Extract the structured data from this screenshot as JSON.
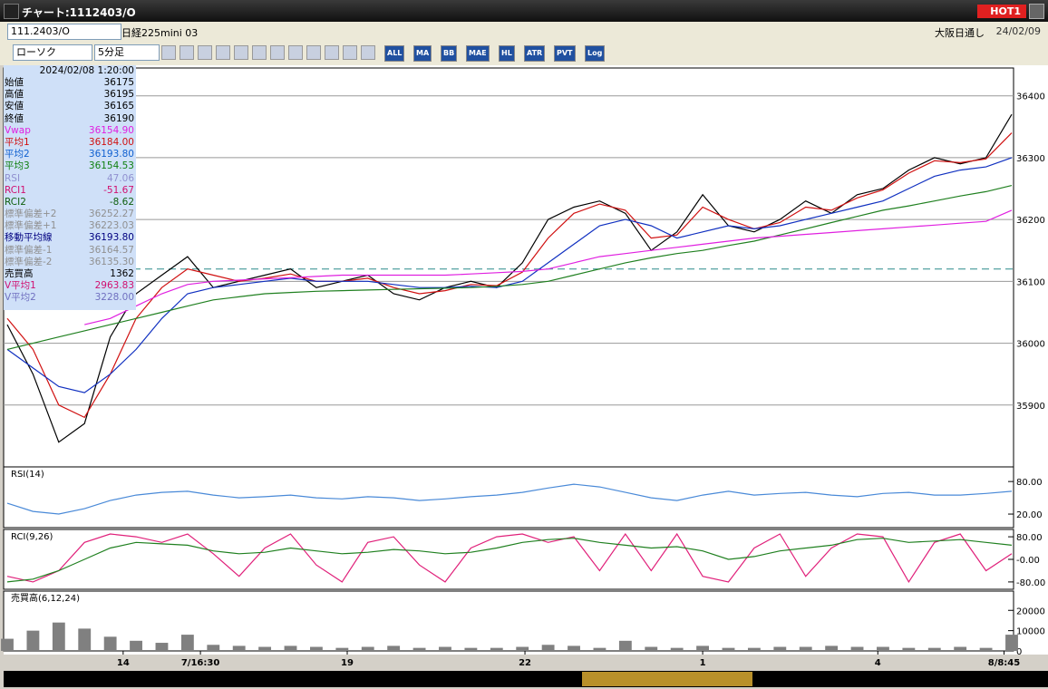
{
  "window": {
    "title": "チャート:1112403/O",
    "badge": "HOT1"
  },
  "toolbar": {
    "symbol": "111.2403/O",
    "name": "日経225mini 03",
    "market": "大阪日通し",
    "date": "24/02/09",
    "chart_type": "ローソク",
    "interval": "5分足",
    "buttons": [
      "ALL",
      "MA",
      "BB",
      "MAE",
      "HL",
      "ATR",
      "PVT",
      "Log"
    ]
  },
  "info_panel": {
    "datetime": "2024/02/08 1:20:00",
    "rows": [
      {
        "label": "始値",
        "value": "36175",
        "color": "#000000"
      },
      {
        "label": "高値",
        "value": "36195",
        "color": "#000000"
      },
      {
        "label": "安値",
        "value": "36165",
        "color": "#000000"
      },
      {
        "label": "終値",
        "value": "36190",
        "color": "#000000"
      },
      {
        "label": "Vwap",
        "value": "36154.90",
        "color": "#e020e0"
      },
      {
        "label": "平均1",
        "value": "36184.00",
        "color": "#d01010"
      },
      {
        "label": "平均2",
        "value": "36193.80",
        "color": "#1060d0"
      },
      {
        "label": "平均3",
        "value": "36154.53",
        "color": "#108010"
      },
      {
        "label": "RSI",
        "value": "47.06",
        "color": "#9090d0"
      },
      {
        "label": "RCI1",
        "value": "-51.67",
        "color": "#d01070"
      },
      {
        "label": "RCI2",
        "value": "-8.62",
        "color": "#106010"
      },
      {
        "label": "標準偏差+2",
        "value": "36252.27",
        "color": "#909090"
      },
      {
        "label": "標準偏差+1",
        "value": "36223.03",
        "color": "#909090"
      },
      {
        "label": "移動平均線",
        "value": "36193.80",
        "color": "#000080"
      },
      {
        "label": "標準偏差-1",
        "value": "36164.57",
        "color": "#909090"
      },
      {
        "label": "標準偏差-2",
        "value": "36135.30",
        "color": "#909090"
      },
      {
        "label": "売買高",
        "value": "1362",
        "color": "#000000"
      },
      {
        "label": "V平均1",
        "value": "2963.83",
        "color": "#d01070"
      },
      {
        "label": "V平均2",
        "value": "3228.00",
        "color": "#7070c0"
      }
    ]
  },
  "chart_data": [
    {
      "type": "line",
      "xlim": [
        0,
        39
      ],
      "ylim": [
        35800,
        36445
      ],
      "yticks": [
        35900,
        36000,
        36100,
        36200,
        36300,
        36400
      ],
      "xticks": [
        {
          "value": 4.5,
          "label": "14"
        },
        {
          "value": 7.5,
          "label": "7/16:30"
        },
        {
          "value": 13.2,
          "label": "19"
        },
        {
          "value": 20.1,
          "label": "22"
        },
        {
          "value": 27,
          "label": "1"
        },
        {
          "value": 33.8,
          "label": "4"
        },
        {
          "value": 38.7,
          "label": "8/8:45"
        }
      ],
      "hline": 36120,
      "hline_color": "#2a8a8a",
      "grid": true,
      "series": [
        {
          "color": "#000000",
          "values": [
            36030,
            35950,
            35840,
            35870,
            36010,
            36080,
            36110,
            36140,
            36090,
            36100,
            36110,
            36120,
            36090,
            36100,
            36110,
            36080,
            36070,
            36090,
            36100,
            36090,
            36130,
            36200,
            36220,
            36230,
            36210,
            36150,
            36180,
            36240,
            36190,
            36180,
            36200,
            36230,
            36210,
            36240,
            36250,
            36280,
            36300,
            36290,
            36300,
            36370
          ]
        },
        {
          "color": "#d01010",
          "values": [
            36040,
            35990,
            35900,
            35880,
            35950,
            36040,
            36090,
            36120,
            36110,
            36100,
            36105,
            36112,
            36100,
            36100,
            36105,
            36090,
            36080,
            36085,
            36095,
            36093,
            36115,
            36170,
            36210,
            36225,
            36215,
            36170,
            36175,
            36220,
            36200,
            36185,
            36195,
            36220,
            36215,
            36235,
            36248,
            36275,
            36295,
            36292,
            36298,
            36340
          ]
        },
        {
          "color": "#1030c0",
          "values": [
            35990,
            35960,
            35930,
            35920,
            35950,
            35990,
            36040,
            36080,
            36090,
            36095,
            36100,
            36105,
            36100,
            36100,
            36100,
            36095,
            36090,
            36090,
            36092,
            36090,
            36100,
            36130,
            36160,
            36190,
            36200,
            36190,
            36170,
            36180,
            36190,
            36185,
            36190,
            36200,
            36210,
            36220,
            36230,
            36250,
            36270,
            36280,
            36285,
            36300
          ]
        },
        {
          "color": "#208020",
          "values": [
            35990,
            36000,
            36010,
            36020,
            36030,
            36040,
            36050,
            36060,
            36070,
            36075,
            36080,
            36082,
            36084,
            36085,
            36086,
            36087,
            36088,
            36089,
            36090,
            36092,
            36095,
            36100,
            36110,
            36120,
            36130,
            36138,
            36145,
            36150,
            36158,
            36165,
            36175,
            36185,
            36195,
            36205,
            36215,
            36222,
            36230,
            36238,
            36245,
            36255
          ]
        },
        {
          "color": "#e020e0",
          "values": [
            null,
            null,
            null,
            36030,
            36040,
            36060,
            36080,
            36095,
            36100,
            36102,
            36104,
            36106,
            36108,
            36110,
            36110,
            36110,
            36110,
            36110,
            36112,
            36114,
            36116,
            36120,
            36130,
            36140,
            36145,
            36150,
            36155,
            36160,
            36165,
            36170,
            36173,
            36176,
            36179,
            36182,
            36185,
            36188,
            36191,
            36194,
            36197,
            36215
          ]
        }
      ]
    },
    {
      "type": "line",
      "title": "RSI(14)",
      "ylim": [
        -5,
        107
      ],
      "yticks": [
        {
          "value": 80,
          "label": "80.00"
        },
        {
          "value": 20,
          "label": "20.00"
        }
      ],
      "grid": false,
      "series": [
        {
          "color": "#4a8ad8",
          "values": [
            40,
            25,
            20,
            30,
            45,
            55,
            60,
            62,
            55,
            50,
            52,
            55,
            50,
            48,
            52,
            50,
            45,
            48,
            52,
            55,
            60,
            68,
            75,
            70,
            60,
            50,
            45,
            55,
            62,
            55,
            58,
            60,
            55,
            52,
            58,
            60,
            55,
            55,
            58,
            62
          ]
        }
      ]
    },
    {
      "type": "line",
      "title": "RCI(9,26)",
      "ylim": [
        -106,
        106
      ],
      "yticks": [
        {
          "value": 80,
          "label": "80.00"
        },
        {
          "value": 0,
          "label": "-0.00"
        },
        {
          "value": -80,
          "label": "-80.00"
        }
      ],
      "grid": false,
      "series": [
        {
          "color": "#e0207a",
          "values": [
            -60,
            -80,
            -40,
            60,
            90,
            80,
            60,
            90,
            20,
            -60,
            40,
            90,
            -20,
            -80,
            60,
            80,
            -20,
            -80,
            40,
            80,
            90,
            60,
            80,
            -40,
            90,
            -40,
            90,
            -60,
            -80,
            40,
            90,
            -60,
            40,
            90,
            80,
            -80,
            60,
            90,
            -40,
            20
          ]
        },
        {
          "color": "#208020",
          "values": [
            -80,
            -70,
            -40,
            0,
            40,
            60,
            55,
            50,
            30,
            20,
            25,
            40,
            30,
            20,
            25,
            35,
            30,
            20,
            25,
            40,
            60,
            70,
            75,
            60,
            50,
            40,
            45,
            30,
            0,
            10,
            30,
            40,
            50,
            70,
            75,
            60,
            65,
            70,
            60,
            50
          ]
        }
      ]
    },
    {
      "type": "bar",
      "title": "売買高(6,12,24)",
      "ylim": [
        0,
        29500
      ],
      "yticks": [
        20000,
        10000,
        0
      ],
      "grid": false,
      "color": "#808080",
      "values": [
        6000,
        10000,
        14000,
        11000,
        7000,
        5000,
        4000,
        8000,
        3000,
        2500,
        2000,
        2500,
        2000,
        1500,
        2000,
        2500,
        1500,
        2000,
        1500,
        1500,
        2000,
        3000,
        2500,
        1500,
        5000,
        2000,
        1500,
        2500,
        1500,
        1500,
        2000,
        2000,
        2500,
        2000,
        2000,
        1500,
        1500,
        2000,
        1500,
        8000
      ]
    }
  ]
}
